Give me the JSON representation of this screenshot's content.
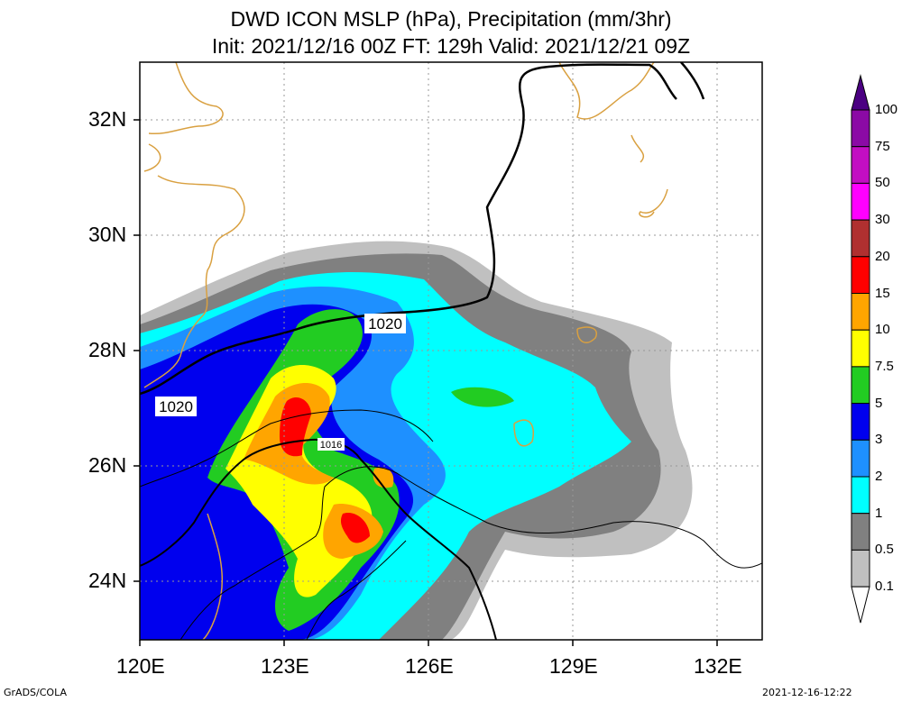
{
  "title_line1": "DWD ICON MSLP (hPa), Precipitation (mm/3hr)",
  "title_line2": "Init: 2021/12/16 00Z  FT: 129h  Valid: 2021/12/21 09Z",
  "lat_labels": [
    "32N",
    "30N",
    "28N",
    "26N",
    "24N"
  ],
  "lon_labels": [
    "120E",
    "123E",
    "126E",
    "129E",
    "132E"
  ],
  "isobar_labels": {
    "label_a": "1020",
    "label_b": "1020",
    "label_c": "1016"
  },
  "colorbar": {
    "labels": [
      "100",
      "75",
      "50",
      "30",
      "20",
      "15",
      "10",
      "7.5",
      "5",
      "3",
      "2",
      "1",
      "0.5",
      "0.1"
    ],
    "colors": [
      "#4b0082",
      "#8b0aa5",
      "#c20ec2",
      "#ff00ff",
      "#b03030",
      "#ff0000",
      "#ffa500",
      "#ffff00",
      "#22cc22",
      "#0000ee",
      "#1e90ff",
      "#00ffff",
      "#808080",
      "#c0c0c0"
    ]
  },
  "footer_left": "GrADS/COLA",
  "footer_right": "2021-12-16-12:22"
}
